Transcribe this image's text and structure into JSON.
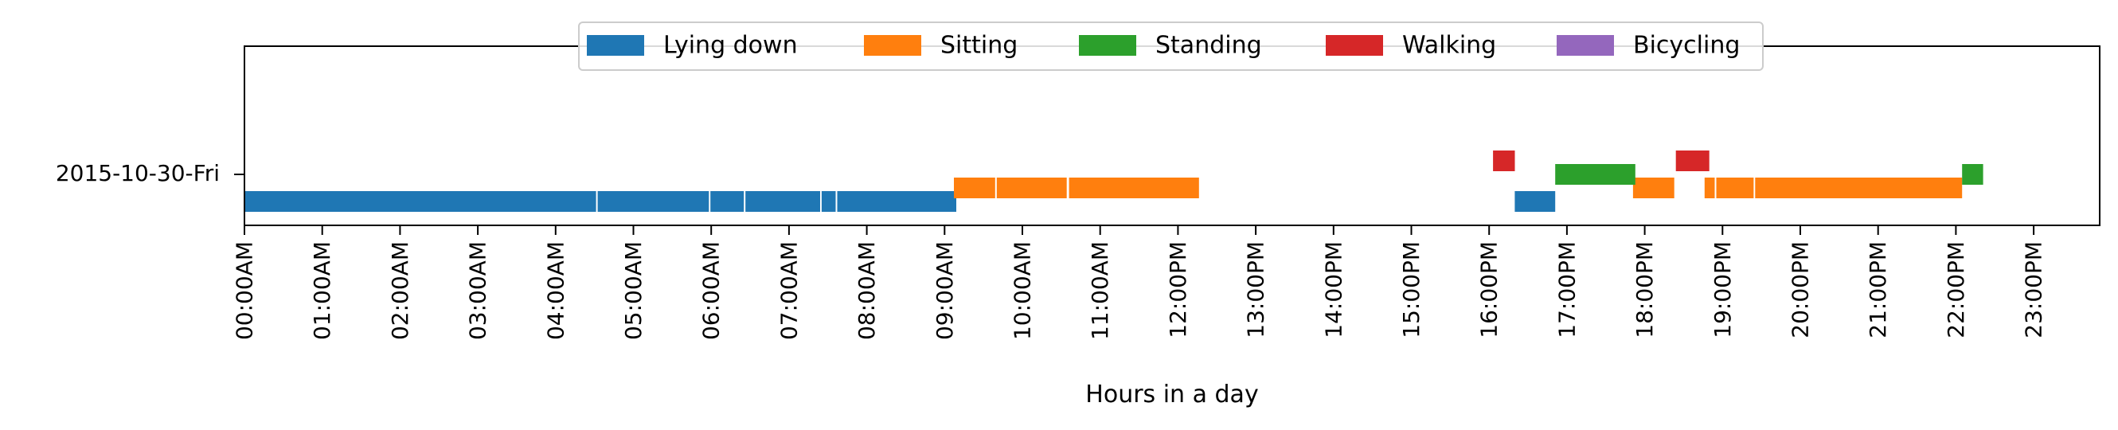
{
  "chart_data": {
    "type": "timeline",
    "xlabel": "Hours in a day",
    "xlim": [
      0,
      24
    ],
    "legend_position": "top-center",
    "grid": false,
    "x_tick_labels": [
      "00:00AM",
      "01:00AM",
      "02:00AM",
      "03:00AM",
      "04:00AM",
      "05:00AM",
      "06:00AM",
      "07:00AM",
      "08:00AM",
      "09:00AM",
      "10:00AM",
      "11:00AM",
      "12:00PM",
      "13:00PM",
      "14:00PM",
      "15:00PM",
      "16:00PM",
      "17:00PM",
      "18:00PM",
      "19:00PM",
      "20:00PM",
      "21:00PM",
      "22:00PM",
      "23:00PM"
    ],
    "rows": [
      "2015-10-30-Fri"
    ],
    "series": [
      {
        "name": "Lying down",
        "color": "#1f77b4",
        "level": -1,
        "intervals": [
          [
            0.0,
            4.52
          ],
          [
            4.54,
            5.97
          ],
          [
            5.99,
            6.42
          ],
          [
            6.44,
            7.4
          ],
          [
            7.42,
            7.6
          ],
          [
            7.62,
            9.15
          ],
          [
            16.33,
            16.85
          ]
        ]
      },
      {
        "name": "Sitting",
        "color": "#ff7f0e",
        "level": -0.5,
        "intervals": [
          [
            9.12,
            9.65
          ],
          [
            9.67,
            10.57
          ],
          [
            10.6,
            12.27
          ],
          [
            17.85,
            18.38
          ],
          [
            18.77,
            18.9
          ],
          [
            18.92,
            19.4
          ],
          [
            19.42,
            22.08
          ]
        ]
      },
      {
        "name": "Standing",
        "color": "#2ca02c",
        "level": 0,
        "intervals": [
          [
            16.85,
            17.88
          ],
          [
            22.08,
            22.35
          ]
        ]
      },
      {
        "name": "Walking",
        "color": "#d62728",
        "level": 0.5,
        "intervals": [
          [
            16.05,
            16.33
          ],
          [
            18.4,
            18.83
          ]
        ]
      },
      {
        "name": "Bicycling",
        "color": "#9467bd",
        "level": 1,
        "intervals": []
      }
    ]
  }
}
